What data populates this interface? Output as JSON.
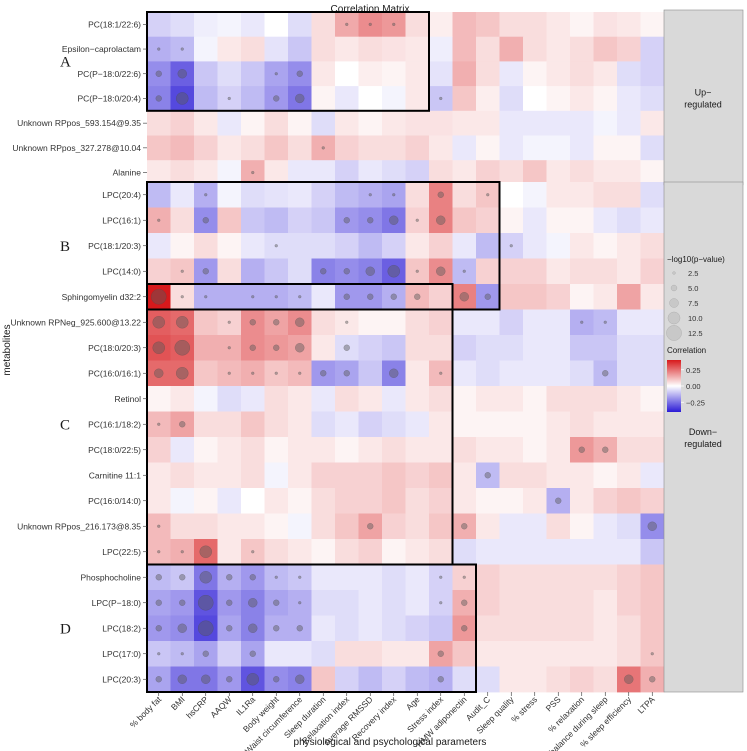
{
  "chart_data": {
    "type": "heatmap",
    "title": "Correlation Matrix",
    "xlabel": "physiological and psychological parameters",
    "ylabel": "metabolites",
    "x_categories": [
      "% body fat",
      "BMI",
      "hsCRP",
      "AAQW",
      "IL1Ra",
      "Body weight",
      "Waist circumference",
      "Sleep duration",
      "Relaxation index",
      "Average RMSSD",
      "Recovery index",
      "Age",
      "Stress index",
      "HMW adiponectin",
      "Audit_C",
      "Sleep quality",
      "% stress",
      "PSS",
      "% relaxation",
      "Stress balance during sleep",
      "% sleep efficiency",
      "LTPA"
    ],
    "y_categories": [
      "PC(18:1/22:6)",
      "Epsilon−caprolactam",
      "PC(P−18:0/22:6)",
      "PC(P−18:0/20:4)",
      "Unknown RPpos_593.154@9.35",
      "Unknown RPpos_327.278@10.04",
      "Alanine",
      "LPC(20:4)",
      "LPC(16:1)",
      "PC(18:1/20:3)",
      "LPC(14:0)",
      "Sphingomyelin d32:2",
      "Unknown RPNeg_925.600@13.22",
      "PC(18:0/20:3)",
      "PC(16:0/16:1)",
      "Retinol",
      "PC(16:1/18:2)",
      "PC(18:0/22:5)",
      "Carnitine 11:1",
      "PC(16:0/14:0)",
      "Unknown RPpos_216.173@8.35",
      "LPC(22:5)",
      "Phosphocholine",
      "LPC(P−18:0)",
      "LPC(18:2)",
      "LPC(17:0)",
      "LPC(20:3)"
    ],
    "correlations": [
      [
        -0.08,
        -0.06,
        -0.03,
        -0.02,
        -0.04,
        0.0,
        -0.06,
        0.06,
        0.15,
        0.2,
        0.18,
        0.06,
        0.03,
        0.12,
        0.1,
        0.06,
        0.06,
        0.04,
        0.02,
        0.05,
        0.04,
        0.02
      ],
      [
        -0.14,
        -0.12,
        -0.02,
        0.04,
        0.06,
        -0.05,
        -0.1,
        0.06,
        0.04,
        0.06,
        0.05,
        0.04,
        -0.03,
        0.12,
        0.06,
        0.14,
        0.06,
        0.04,
        0.06,
        0.1,
        0.08,
        -0.08
      ],
      [
        -0.2,
        -0.28,
        -0.1,
        -0.06,
        -0.1,
        -0.16,
        -0.2,
        0.04,
        0.0,
        0.03,
        0.02,
        0.04,
        -0.05,
        0.14,
        0.06,
        -0.04,
        0.02,
        0.04,
        0.06,
        0.04,
        -0.06,
        -0.08
      ],
      [
        -0.22,
        -0.32,
        -0.12,
        -0.08,
        -0.12,
        -0.18,
        -0.24,
        0.02,
        -0.04,
        0.0,
        -0.02,
        0.04,
        -0.1,
        0.1,
        0.03,
        -0.06,
        0.0,
        0.02,
        0.04,
        0.02,
        -0.04,
        -0.06
      ],
      [
        0.06,
        0.08,
        0.04,
        -0.04,
        0.02,
        0.06,
        0.02,
        -0.06,
        0.04,
        0.02,
        0.04,
        0.05,
        0.05,
        0.04,
        0.04,
        -0.04,
        -0.04,
        -0.04,
        -0.04,
        -0.02,
        -0.04,
        0.04
      ],
      [
        0.1,
        0.12,
        0.08,
        0.04,
        0.06,
        0.1,
        0.06,
        0.14,
        0.08,
        0.06,
        0.06,
        0.08,
        0.04,
        -0.04,
        0.02,
        -0.04,
        -0.02,
        -0.02,
        -0.04,
        0.02,
        0.02,
        -0.06
      ],
      [
        0.04,
        0.06,
        0.04,
        -0.02,
        0.14,
        0.04,
        -0.04,
        -0.04,
        -0.08,
        -0.04,
        -0.06,
        -0.08,
        0.06,
        0.04,
        0.08,
        0.06,
        0.1,
        0.04,
        0.06,
        0.04,
        0.04,
        0.02
      ],
      [
        -0.12,
        -0.04,
        -0.14,
        -0.02,
        -0.06,
        -0.05,
        -0.04,
        -0.08,
        -0.12,
        -0.14,
        -0.16,
        0.06,
        0.22,
        0.06,
        0.1,
        0.0,
        -0.02,
        0.04,
        0.04,
        0.06,
        0.06,
        -0.06
      ],
      [
        0.14,
        0.06,
        -0.2,
        0.1,
        -0.1,
        -0.12,
        -0.08,
        -0.1,
        -0.18,
        -0.2,
        -0.24,
        0.08,
        0.22,
        0.1,
        0.08,
        0.02,
        -0.04,
        0.02,
        0.02,
        -0.04,
        -0.06,
        -0.04
      ],
      [
        -0.04,
        0.02,
        0.06,
        0.02,
        -0.04,
        -0.06,
        -0.06,
        -0.06,
        -0.08,
        -0.12,
        -0.08,
        0.04,
        0.08,
        -0.04,
        -0.12,
        -0.08,
        -0.04,
        -0.02,
        0.04,
        0.02,
        0.04,
        0.06
      ],
      [
        0.08,
        0.1,
        -0.18,
        0.06,
        -0.14,
        -0.1,
        -0.06,
        -0.22,
        -0.2,
        -0.22,
        -0.28,
        0.1,
        0.2,
        -0.12,
        0.08,
        0.08,
        0.08,
        0.04,
        0.06,
        0.06,
        0.04,
        0.08
      ],
      [
        0.4,
        0.06,
        -0.14,
        -0.14,
        -0.14,
        -0.14,
        -0.12,
        -0.04,
        -0.18,
        -0.18,
        -0.14,
        0.12,
        0.08,
        0.22,
        -0.18,
        0.1,
        0.1,
        0.08,
        0.02,
        0.04,
        0.16,
        0.04
      ],
      [
        0.28,
        0.26,
        0.1,
        0.08,
        0.2,
        0.16,
        0.2,
        0.06,
        0.04,
        0.02,
        0.02,
        0.06,
        0.08,
        -0.04,
        -0.04,
        -0.08,
        -0.04,
        -0.04,
        -0.14,
        -0.12,
        -0.04,
        -0.04
      ],
      [
        0.3,
        0.28,
        0.14,
        0.14,
        0.2,
        0.18,
        0.16,
        0.04,
        -0.06,
        -0.08,
        -0.1,
        0.06,
        0.06,
        -0.08,
        -0.06,
        -0.06,
        -0.04,
        -0.04,
        -0.1,
        -0.1,
        -0.06,
        -0.06
      ],
      [
        0.26,
        0.26,
        0.1,
        0.12,
        0.14,
        0.1,
        0.12,
        -0.18,
        -0.16,
        -0.1,
        -0.22,
        0.04,
        0.12,
        -0.04,
        -0.06,
        -0.04,
        -0.04,
        -0.04,
        -0.06,
        -0.12,
        -0.06,
        -0.06
      ],
      [
        0.02,
        0.04,
        -0.02,
        -0.06,
        -0.04,
        0.06,
        0.04,
        -0.04,
        0.06,
        0.04,
        -0.04,
        0.04,
        0.06,
        0.02,
        0.04,
        0.04,
        0.02,
        0.06,
        0.06,
        0.06,
        0.04,
        0.02
      ],
      [
        0.12,
        0.16,
        0.06,
        0.06,
        0.1,
        0.06,
        0.04,
        -0.06,
        -0.04,
        -0.08,
        -0.06,
        -0.04,
        0.04,
        0.02,
        0.02,
        0.02,
        0.02,
        0.04,
        0.06,
        0.04,
        0.04,
        0.04
      ],
      [
        0.08,
        -0.04,
        0.02,
        0.04,
        0.06,
        0.02,
        0.04,
        0.04,
        0.02,
        0.04,
        0.06,
        0.04,
        0.04,
        0.06,
        0.04,
        0.04,
        0.02,
        0.04,
        0.18,
        0.14,
        0.06,
        0.06
      ],
      [
        0.04,
        0.06,
        0.04,
        0.04,
        0.06,
        -0.02,
        0.04,
        0.08,
        0.08,
        0.08,
        0.1,
        0.08,
        0.1,
        0.04,
        -0.12,
        0.06,
        0.06,
        0.04,
        0.04,
        0.02,
        0.04,
        -0.04
      ],
      [
        0.04,
        -0.02,
        0.02,
        -0.04,
        0.0,
        0.04,
        0.02,
        0.06,
        0.08,
        0.08,
        0.1,
        0.06,
        0.08,
        0.04,
        0.02,
        0.02,
        0.04,
        -0.14,
        0.04,
        0.08,
        0.1,
        0.08
      ],
      [
        0.12,
        0.06,
        0.06,
        0.04,
        0.04,
        0.02,
        -0.02,
        0.06,
        0.1,
        0.16,
        0.08,
        0.06,
        0.1,
        0.14,
        0.04,
        -0.04,
        -0.04,
        0.06,
        0.02,
        -0.04,
        -0.06,
        -0.2
      ],
      [
        0.12,
        0.14,
        0.26,
        0.04,
        0.1,
        0.06,
        0.04,
        0.02,
        0.06,
        0.08,
        0.02,
        0.04,
        0.06,
        -0.06,
        -0.04,
        -0.04,
        -0.04,
        -0.04,
        -0.04,
        -0.04,
        -0.04,
        -0.1
      ],
      [
        -0.12,
        -0.1,
        -0.24,
        -0.14,
        -0.18,
        -0.12,
        -0.1,
        -0.04,
        -0.04,
        -0.04,
        -0.06,
        -0.04,
        -0.08,
        0.08,
        0.08,
        0.06,
        0.06,
        0.06,
        0.06,
        0.06,
        0.08,
        0.1
      ],
      [
        -0.16,
        -0.18,
        -0.3,
        -0.18,
        -0.22,
        -0.16,
        -0.14,
        -0.06,
        -0.06,
        -0.04,
        -0.06,
        -0.04,
        -0.08,
        0.14,
        0.08,
        0.06,
        0.06,
        0.06,
        0.06,
        0.04,
        0.08,
        0.1
      ],
      [
        -0.18,
        -0.2,
        -0.32,
        -0.16,
        -0.22,
        -0.14,
        -0.14,
        -0.04,
        -0.06,
        -0.04,
        -0.06,
        -0.08,
        -0.1,
        0.18,
        0.06,
        0.06,
        0.06,
        0.06,
        0.06,
        0.04,
        0.06,
        0.1
      ],
      [
        -0.1,
        -0.12,
        -0.16,
        -0.08,
        -0.16,
        -0.04,
        -0.04,
        -0.06,
        0.06,
        0.06,
        0.04,
        0.04,
        0.16,
        0.1,
        0.04,
        0.04,
        0.04,
        0.04,
        0.04,
        0.04,
        0.06,
        0.1
      ],
      [
        -0.16,
        -0.24,
        -0.24,
        -0.18,
        -0.3,
        -0.2,
        -0.22,
        0.1,
        -0.08,
        -0.12,
        -0.08,
        -0.12,
        -0.14,
        -0.06,
        -0.06,
        0.04,
        0.04,
        0.06,
        0.08,
        0.06,
        0.24,
        0.14
      ]
    ],
    "significance_points": [
      [
        0,
        8,
        2.5
      ],
      [
        0,
        9,
        2.5
      ],
      [
        0,
        10,
        2.5
      ],
      [
        1,
        0,
        2.5
      ],
      [
        1,
        1,
        2.5
      ],
      [
        2,
        0,
        5.0
      ],
      [
        2,
        1,
        7.5
      ],
      [
        2,
        5,
        2.5
      ],
      [
        2,
        6,
        5.0
      ],
      [
        3,
        0,
        5.0
      ],
      [
        3,
        1,
        10.0
      ],
      [
        3,
        3,
        2.5
      ],
      [
        3,
        5,
        5.0
      ],
      [
        3,
        6,
        7.5
      ],
      [
        3,
        12,
        2.5
      ],
      [
        5,
        7,
        2.5
      ],
      [
        6,
        4,
        2.5
      ],
      [
        7,
        2,
        2.5
      ],
      [
        7,
        9,
        2.5
      ],
      [
        7,
        10,
        2.5
      ],
      [
        7,
        12,
        5.0
      ],
      [
        7,
        14,
        2.5
      ],
      [
        8,
        0,
        2.5
      ],
      [
        8,
        2,
        5.0
      ],
      [
        8,
        8,
        5.0
      ],
      [
        8,
        9,
        5.0
      ],
      [
        8,
        10,
        7.5
      ],
      [
        8,
        11,
        2.5
      ],
      [
        8,
        12,
        7.5
      ],
      [
        9,
        5,
        2.5
      ],
      [
        9,
        15,
        2.5
      ],
      [
        10,
        1,
        2.5
      ],
      [
        10,
        2,
        5.0
      ],
      [
        10,
        7,
        5.0
      ],
      [
        10,
        8,
        5.0
      ],
      [
        10,
        9,
        7.5
      ],
      [
        10,
        10,
        10.0
      ],
      [
        10,
        11,
        2.5
      ],
      [
        10,
        12,
        7.5
      ],
      [
        10,
        13,
        2.5
      ],
      [
        11,
        0,
        12.5
      ],
      [
        11,
        1,
        2.5
      ],
      [
        11,
        2,
        2.5
      ],
      [
        11,
        4,
        2.5
      ],
      [
        11,
        5,
        2.5
      ],
      [
        11,
        6,
        2.5
      ],
      [
        11,
        8,
        5.0
      ],
      [
        11,
        9,
        5.0
      ],
      [
        11,
        10,
        5.0
      ],
      [
        11,
        11,
        5.0
      ],
      [
        11,
        13,
        7.5
      ],
      [
        11,
        14,
        5.0
      ],
      [
        12,
        0,
        10.0
      ],
      [
        12,
        1,
        10.0
      ],
      [
        12,
        3,
        2.5
      ],
      [
        12,
        4,
        5.0
      ],
      [
        12,
        5,
        5.0
      ],
      [
        12,
        6,
        7.5
      ],
      [
        12,
        8,
        2.5
      ],
      [
        12,
        18,
        2.5
      ],
      [
        12,
        19,
        2.5
      ],
      [
        13,
        0,
        10.0
      ],
      [
        13,
        1,
        12.5
      ],
      [
        13,
        3,
        2.5
      ],
      [
        13,
        4,
        5.0
      ],
      [
        13,
        5,
        5.0
      ],
      [
        13,
        6,
        7.5
      ],
      [
        13,
        8,
        5.0
      ],
      [
        14,
        0,
        7.5
      ],
      [
        14,
        1,
        10.0
      ],
      [
        14,
        3,
        2.5
      ],
      [
        14,
        4,
        2.5
      ],
      [
        14,
        5,
        2.5
      ],
      [
        14,
        6,
        2.5
      ],
      [
        14,
        7,
        5.0
      ],
      [
        14,
        8,
        5.0
      ],
      [
        14,
        10,
        7.5
      ],
      [
        14,
        12,
        2.5
      ],
      [
        14,
        19,
        5.0
      ],
      [
        16,
        0,
        2.5
      ],
      [
        16,
        1,
        5.0
      ],
      [
        17,
        18,
        5.0
      ],
      [
        17,
        19,
        5.0
      ],
      [
        18,
        14,
        5.0
      ],
      [
        19,
        17,
        5.0
      ],
      [
        20,
        0,
        2.5
      ],
      [
        20,
        9,
        5.0
      ],
      [
        20,
        13,
        5.0
      ],
      [
        20,
        21,
        7.5
      ],
      [
        21,
        0,
        2.5
      ],
      [
        21,
        1,
        2.5
      ],
      [
        21,
        2,
        10.0
      ],
      [
        21,
        4,
        2.5
      ],
      [
        22,
        0,
        5.0
      ],
      [
        22,
        1,
        5.0
      ],
      [
        22,
        2,
        10.0
      ],
      [
        22,
        3,
        5.0
      ],
      [
        22,
        4,
        5.0
      ],
      [
        22,
        5,
        2.5
      ],
      [
        22,
        6,
        2.5
      ],
      [
        22,
        12,
        2.5
      ],
      [
        22,
        13,
        2.5
      ],
      [
        23,
        0,
        5.0
      ],
      [
        23,
        1,
        5.0
      ],
      [
        23,
        2,
        12.5
      ],
      [
        23,
        3,
        5.0
      ],
      [
        23,
        4,
        7.5
      ],
      [
        23,
        5,
        5.0
      ],
      [
        23,
        6,
        2.5
      ],
      [
        23,
        12,
        2.5
      ],
      [
        23,
        13,
        5.0
      ],
      [
        24,
        0,
        5.0
      ],
      [
        24,
        1,
        7.5
      ],
      [
        24,
        2,
        12.5
      ],
      [
        24,
        3,
        5.0
      ],
      [
        24,
        4,
        7.5
      ],
      [
        24,
        5,
        5.0
      ],
      [
        24,
        6,
        5.0
      ],
      [
        24,
        13,
        5.0
      ],
      [
        25,
        0,
        2.5
      ],
      [
        25,
        1,
        2.5
      ],
      [
        25,
        2,
        5.0
      ],
      [
        25,
        4,
        5.0
      ],
      [
        25,
        12,
        5.0
      ],
      [
        25,
        21,
        2.5
      ],
      [
        26,
        0,
        5.0
      ],
      [
        26,
        1,
        7.5
      ],
      [
        26,
        2,
        7.5
      ],
      [
        26,
        3,
        5.0
      ],
      [
        26,
        4,
        10.0
      ],
      [
        26,
        5,
        5.0
      ],
      [
        26,
        6,
        7.5
      ],
      [
        26,
        12,
        5.0
      ],
      [
        26,
        20,
        7.5
      ],
      [
        26,
        21,
        5.0
      ]
    ],
    "highlight_boxes": [
      {
        "label": "A",
        "rows": [
          0,
          3
        ],
        "cols": [
          0,
          11
        ]
      },
      {
        "label": "B",
        "rows": [
          7,
          11
        ],
        "cols": [
          0,
          14
        ]
      },
      {
        "label": "C",
        "rows": [
          11,
          21
        ],
        "cols": [
          0,
          12
        ]
      },
      {
        "label": "D",
        "rows": [
          22,
          26
        ],
        "cols": [
          0,
          13
        ]
      }
    ],
    "groups": [
      {
        "label": "Up−regulated",
        "rows": [
          0,
          6
        ]
      },
      {
        "label": "Down−regulated",
        "rows": [
          7,
          26
        ]
      }
    ],
    "size_legend": {
      "title": "−log10(p−value)",
      "values": [
        2.5,
        5.0,
        7.5,
        10.0,
        12.5
      ],
      "labels": [
        "2.5",
        "5.0",
        "7.5",
        "10.0",
        "12.5"
      ]
    },
    "color_legend": {
      "title": "Correlation",
      "ticks": [
        0.25,
        0.0,
        -0.25
      ],
      "tick_labels": [
        "0.25",
        "0.00",
        "−0.25"
      ],
      "range": [
        -0.4,
        0.4
      ],
      "colors": {
        "high": "#d7191c",
        "mid": "#ffffff",
        "low": "#2b1bd6"
      }
    }
  }
}
